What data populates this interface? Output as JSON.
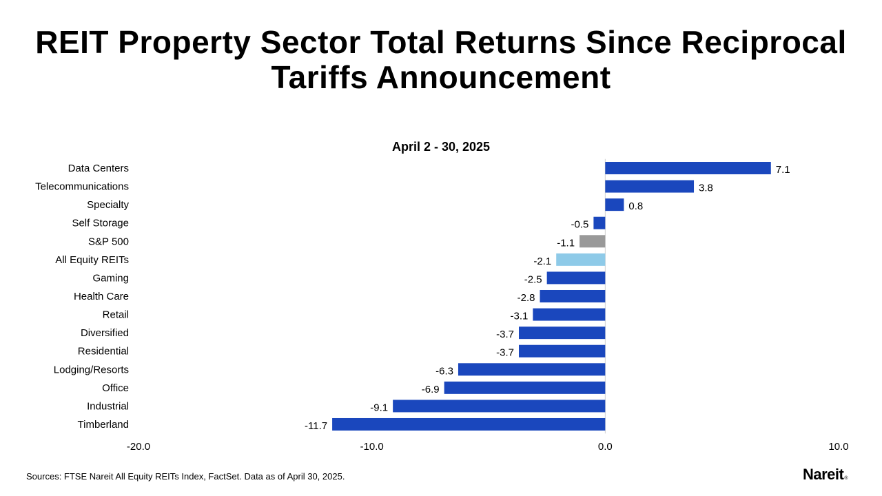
{
  "title": "REIT Property Sector Total Returns Since Reciprocal Tariffs Announcement",
  "colors": {
    "bar_default": "#1a47bd",
    "bar_sp500": "#999999",
    "bar_all_equity_reits": "#8ecae8",
    "zero_line": "#d0d0d0"
  },
  "chart_data": {
    "type": "bar",
    "orientation": "horizontal",
    "title": "April 2 - 30, 2025",
    "categories": [
      "Data Centers",
      "Telecommunications",
      "Specialty",
      "Self Storage",
      "S&P 500",
      "All Equity REITs",
      "Gaming",
      "Health Care",
      "Retail",
      "Diversified",
      "Residential",
      "Lodging/Resorts",
      "Office",
      "Industrial",
      "Timberland"
    ],
    "values": [
      7.1,
      3.8,
      0.8,
      -0.5,
      -1.1,
      -2.1,
      -2.5,
      -2.8,
      -3.1,
      -3.7,
      -3.7,
      -6.3,
      -6.9,
      -9.1,
      -11.7
    ],
    "value_labels": [
      "7.1",
      "3.8",
      "0.8",
      "-0.5",
      "-1.1",
      "-2.1",
      "-2.5",
      "-2.8",
      "-3.1",
      "-3.7",
      "-3.7",
      "-6.3",
      "-6.9",
      "-9.1",
      "-11.7"
    ],
    "xlim": [
      -20,
      10
    ],
    "xticks": [
      -20,
      -10,
      0,
      10
    ],
    "xtick_labels": [
      "-20.0",
      "-10.0",
      "0.0",
      "10.0"
    ],
    "grid": false,
    "legend": "none",
    "xlabel": "",
    "ylabel": ""
  },
  "footer": {
    "source": "Sources: FTSE Nareit All Equity REITs Index, FactSet. Data as of April 30, 2025.",
    "logo_text": "Nareit",
    "logo_mark": "®"
  }
}
